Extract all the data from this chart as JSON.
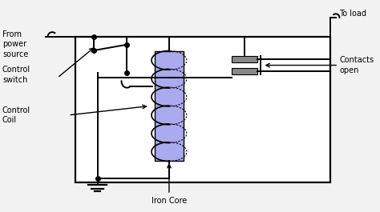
{
  "bg_color": "#f2f2f2",
  "line_color": "#000000",
  "text_color": "#000000",
  "iron_core_fill": "#aaaaee",
  "contact_fill": "#888888",
  "white": "#ffffff",
  "labels": {
    "from_power": "From\npower\nsource",
    "to_load": "To load",
    "control_switch": "Control\nswitch",
    "control_coil": "Control\nCoil",
    "contacts_open": "Contacts\nopen",
    "iron_core": "Iron Core"
  },
  "figsize": [
    4.74,
    2.65
  ],
  "dpi": 100
}
